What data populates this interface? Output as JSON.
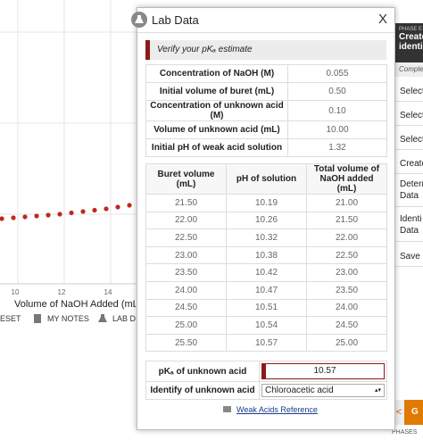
{
  "background": {
    "x_ticks": [
      "10",
      "12",
      "14"
    ],
    "x_axis_label": "Volume of NaOH Added (mL)",
    "toolbar": [
      "ESET",
      "MY NOTES",
      "LAB DA"
    ]
  },
  "modal": {
    "title": "Lab Data",
    "close": "X",
    "banner": "Verify your pKₐ estimate",
    "parameters": [
      [
        "Concentration of NaOH (M)",
        "0.055"
      ],
      [
        "Initial volume of buret (mL)",
        "0.50"
      ],
      [
        "Concentration of unknown acid (M)",
        "0.10"
      ],
      [
        "Volume of unknown acid (mL)",
        "10.00"
      ],
      [
        "Initial pH of weak acid solution",
        "1.32"
      ]
    ],
    "table": {
      "headers": [
        "Buret volume (mL)",
        "pH of solution",
        "Total volume of NaOH added (mL)"
      ],
      "rows": [
        [
          "21.50",
          "10.19",
          "21.00"
        ],
        [
          "22.00",
          "10.26",
          "21.50"
        ],
        [
          "22.50",
          "10.32",
          "22.00"
        ],
        [
          "23.00",
          "10.38",
          "22.50"
        ],
        [
          "23.50",
          "10.42",
          "23.00"
        ],
        [
          "24.00",
          "10.47",
          "23.50"
        ],
        [
          "24.50",
          "10.51",
          "24.00"
        ],
        [
          "25.00",
          "10.54",
          "24.50"
        ],
        [
          "25.50",
          "10.57",
          "25.00"
        ]
      ]
    },
    "answers": [
      [
        "pKₐ of unknown acid",
        "10.57"
      ],
      [
        "Identify of unknown acid",
        "Chloroacetic acid"
      ]
    ],
    "link": "Weak Acids Reference"
  },
  "side_panel": {
    "phase": "PHASE E",
    "title": [
      "Create",
      "identi"
    ],
    "status": "Comple",
    "steps": [
      [
        "Select"
      ],
      [
        "Select"
      ],
      [
        "Select"
      ],
      [
        "Create"
      ],
      [
        "Determ",
        "Data"
      ],
      [
        "Identi",
        "Data"
      ],
      [
        "Save g"
      ]
    ],
    "button": "G",
    "footer": "PHASES"
  }
}
